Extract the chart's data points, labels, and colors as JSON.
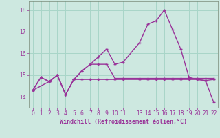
{
  "xlabel": "Windchill (Refroidissement éolien,°C)",
  "background_color": "#cde8e0",
  "grid_color": "#a8d5c8",
  "line_color": "#993399",
  "spine_color": "#778877",
  "xlim": [
    -0.5,
    22.5
  ],
  "ylim": [
    13.5,
    18.4
  ],
  "yticks": [
    14,
    15,
    16,
    17,
    18
  ],
  "xticks": [
    0,
    1,
    2,
    3,
    4,
    5,
    6,
    7,
    8,
    9,
    10,
    11,
    13,
    14,
    15,
    16,
    17,
    18,
    19,
    20,
    21,
    22
  ],
  "series1_x": [
    0,
    1,
    2,
    3,
    4,
    5,
    6,
    7,
    8,
    9,
    10,
    11,
    13,
    14,
    15,
    16,
    17,
    18,
    19,
    20,
    21,
    22
  ],
  "series1_y": [
    14.3,
    14.9,
    14.7,
    15.0,
    14.1,
    14.8,
    15.2,
    15.5,
    15.85,
    16.2,
    15.5,
    15.6,
    16.5,
    17.35,
    17.5,
    18.0,
    17.1,
    16.2,
    14.9,
    14.8,
    14.75,
    14.8
  ],
  "series2_x": [
    0,
    2,
    3,
    4,
    5,
    6,
    7,
    8,
    9,
    10,
    11,
    13,
    14,
    15,
    16,
    17,
    18,
    19,
    20,
    21,
    22
  ],
  "series2_y": [
    14.3,
    14.7,
    15.0,
    14.1,
    14.8,
    15.2,
    15.5,
    15.5,
    15.5,
    14.85,
    14.85,
    14.85,
    14.85,
    14.85,
    14.85,
    14.85,
    14.85,
    14.85,
    14.85,
    14.85,
    14.85
  ],
  "series3_x": [
    0,
    1,
    2,
    3,
    4,
    5,
    6,
    7,
    8,
    9,
    10,
    11,
    13,
    14,
    15,
    16,
    17,
    18,
    19,
    20,
    21,
    22
  ],
  "series3_y": [
    14.3,
    14.9,
    14.7,
    15.0,
    14.1,
    14.8,
    14.8,
    14.8,
    14.8,
    14.8,
    14.8,
    14.8,
    14.8,
    14.8,
    14.8,
    14.8,
    14.8,
    14.8,
    14.8,
    14.8,
    14.75,
    13.75
  ],
  "marker_size": 2.5,
  "line_width": 1.0
}
